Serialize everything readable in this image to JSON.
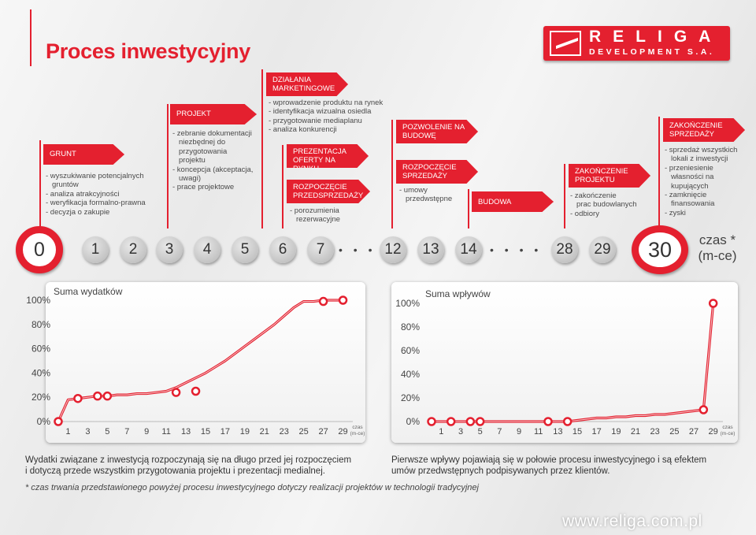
{
  "title": "Proces inwestycyjny",
  "logo": {
    "line1": "RELIGA",
    "line2": "DEVELOPMENT S.A."
  },
  "phases": {
    "grunt": {
      "label": "GRUNT",
      "items": [
        "- wyszukiwanie potencjalnych",
        "  gruntów",
        "- analiza atrakcyjności",
        "- weryfikacja formalno-prawna",
        "- decyzja o zakupie"
      ]
    },
    "projekt": {
      "label": "PROJEKT",
      "items": [
        "- zebranie dokumentacji",
        "  niezbędnej do",
        "  przygotowania",
        "  projektu",
        "- koncepcja (akceptacja,",
        "  uwagi)",
        "- prace projektowe"
      ]
    },
    "marketing": {
      "label_1": "DZIAŁANIA",
      "label_2": "MARKETINGOWE",
      "items": [
        "- wprowadzenie produktu na rynek",
        "- identyfikacja wizualna osiedla",
        "- przygotowanie mediaplanu",
        "- analiza konkurencji"
      ]
    },
    "prezentacja": {
      "label_1": "PREZENTACJA",
      "label_2": "OFERTY NA RYNKU"
    },
    "przedsprzedaz": {
      "label_1": "ROZPOCZĘCIE",
      "label_2": "PRZEDSPRZEDAŻY",
      "items": [
        "- porozumienia",
        "  rezerwacyjne"
      ]
    },
    "pozwolenie": {
      "label_1": "POZWOLENIE NA",
      "label_2": "BUDOWĘ"
    },
    "sprzedaz": {
      "label_1": "ROZPOCZĘCIE",
      "label_2": "SPRZEDAŻY",
      "items": [
        "- umowy",
        "  przedwstępne"
      ]
    },
    "budowa": {
      "label": "BUDOWA"
    },
    "zakonczenie_projektu": {
      "label_1": "ZAKOŃCZENIE",
      "label_2": "PROJEKTU",
      "items": [
        "- zakończenie",
        "  prac budowlanych",
        "- odbiory"
      ]
    },
    "zakonczenie_sprzedazy": {
      "label_1": "ZAKOŃCZENIE",
      "label_2": "SPRZEDAŻY",
      "items": [
        "- sprzedaż wszystkich",
        "  lokali z inwestycji",
        "- przeniesienie",
        "  własności na",
        "  kupujących",
        "- zamknięcie",
        "  finansowania",
        "- zyski"
      ]
    }
  },
  "timeline": {
    "start": "0",
    "months": [
      "1",
      "2",
      "3",
      "4",
      "5",
      "6",
      "7",
      "12",
      "13",
      "14",
      "28",
      "29"
    ],
    "end": "30",
    "dots": "• • •",
    "dots_2": "• • • •",
    "czas_line1": "czas *",
    "czas_line2": "(m-ce)"
  },
  "chart_data": [
    {
      "type": "line",
      "title": "Suma wydatków",
      "xlabel": "czas (m-ce)",
      "x_ticks": [
        "1",
        "3",
        "5",
        "7",
        "9",
        "11",
        "13",
        "15",
        "17",
        "19",
        "21",
        "23",
        "25",
        "27",
        "29"
      ],
      "y_ticks": [
        "0%",
        "20%",
        "40%",
        "60%",
        "80%",
        "100%"
      ],
      "ylim": [
        0,
        100
      ],
      "xlim": [
        0,
        30
      ],
      "color": "#e4202f",
      "x": [
        0,
        1,
        2,
        3,
        4,
        5,
        6,
        7,
        8,
        9,
        10,
        11,
        12,
        13,
        14,
        15,
        16,
        17,
        18,
        19,
        20,
        21,
        22,
        23,
        24,
        25,
        26,
        27,
        28,
        29
      ],
      "values": [
        0,
        18,
        19,
        20,
        21,
        21,
        22,
        22,
        23,
        23,
        24,
        25,
        28,
        32,
        36,
        40,
        45,
        50,
        56,
        62,
        68,
        74,
        80,
        87,
        94,
        99,
        99,
        100,
        100,
        100
      ],
      "markers_x": [
        0,
        2,
        4,
        5,
        12,
        14,
        27,
        29
      ],
      "markers_y": [
        0,
        19,
        21,
        21,
        24,
        25,
        99,
        100
      ]
    },
    {
      "type": "line",
      "title": "Suma wpływów",
      "xlabel": "czas (m-ce)",
      "x_ticks": [
        "1",
        "3",
        "5",
        "7",
        "9",
        "11",
        "13",
        "15",
        "17",
        "19",
        "21",
        "23",
        "25",
        "27",
        "29"
      ],
      "y_ticks": [
        "0%",
        "20%",
        "40%",
        "60%",
        "80%",
        "100%"
      ],
      "ylim": [
        0,
        100
      ],
      "xlim": [
        0,
        30
      ],
      "color": "#e4202f",
      "x": [
        0,
        2,
        4,
        5,
        12,
        14,
        15,
        16,
        17,
        18,
        19,
        20,
        21,
        22,
        23,
        24,
        25,
        26,
        27,
        28,
        29
      ],
      "values": [
        0,
        0,
        0,
        0,
        0,
        0,
        1,
        2,
        3,
        3,
        4,
        4,
        5,
        5,
        6,
        6,
        7,
        8,
        9,
        10,
        100
      ],
      "markers_x": [
        0,
        2,
        4,
        5,
        12,
        14,
        28,
        29
      ],
      "markers_y": [
        0,
        0,
        0,
        0,
        0,
        0,
        10,
        100
      ]
    }
  ],
  "notes": {
    "left_1": "Wydatki związane z inwestycją rozpoczynają się na długo przed jej rozpoczęciem",
    "left_2": "i dotyczą przede wszystkim przygotowania projektu i prezentacji medialnej.",
    "right_1": "Pierwsze wpływy pojawiają się w połowie procesu inwestycyjnego i są efektem",
    "right_2": "umów przedwstępnych podpisywanych przez klientów.",
    "footnote": "* czas trwania przedstawionego powyżej procesu inwestycyjnego dotyczy realizacji projektów w technologii tradycyjnej"
  },
  "website": "www.religa.com.pl"
}
